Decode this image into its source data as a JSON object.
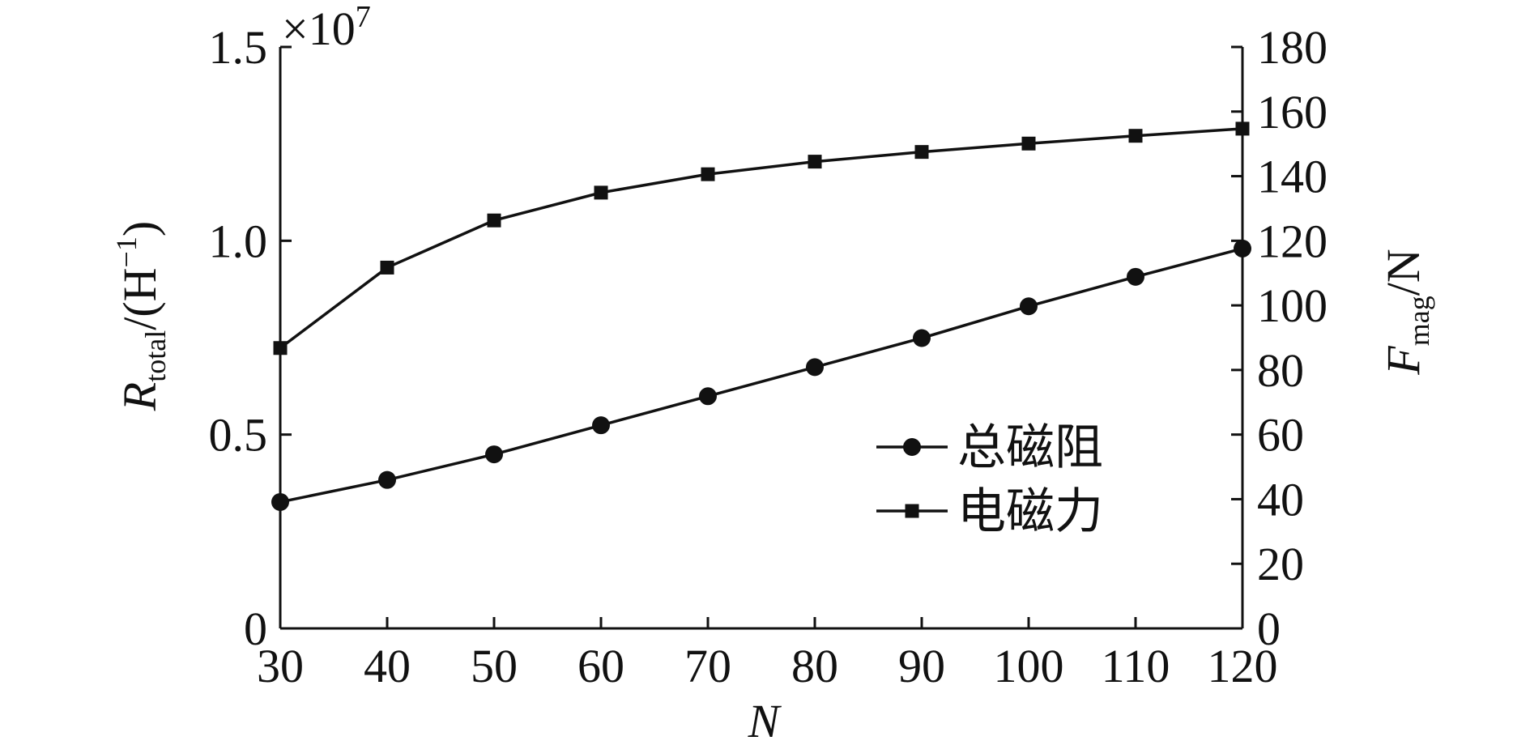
{
  "chart_data": {
    "type": "line",
    "x": [
      30,
      40,
      50,
      60,
      70,
      80,
      90,
      100,
      110,
      120
    ],
    "xlabel": "N",
    "xlim": [
      30,
      120
    ],
    "x_ticks": [
      "30",
      "40",
      "50",
      "60",
      "70",
      "80",
      "90",
      "100",
      "110",
      "120"
    ],
    "y_left": {
      "label_main": "R",
      "label_sub": "total",
      "label_unit": "/(H",
      "label_sup": "−1",
      "label_close": ")",
      "multiplier_prefix": "×10",
      "multiplier_exp": "7",
      "ylim": [
        0,
        1.5
      ],
      "ticks": [
        0,
        0.5,
        1.0,
        1.5
      ],
      "tick_labels": [
        "0",
        "0.5",
        "1.0",
        "1.5"
      ]
    },
    "y_right": {
      "label_main": "F",
      "label_sub": "mag",
      "label_unit": "/N",
      "ylim": [
        0,
        180
      ],
      "ticks": [
        0,
        20,
        40,
        60,
        80,
        100,
        120,
        140,
        160,
        180
      ],
      "tick_labels": [
        "0",
        "20",
        "40",
        "60",
        "80",
        "100",
        "120",
        "140",
        "160",
        "180"
      ]
    },
    "series": [
      {
        "name": "总磁阻",
        "axis": "left",
        "marker": "circle",
        "values": [
          0.326,
          0.383,
          0.449,
          0.524,
          0.599,
          0.674,
          0.749,
          0.831,
          0.907,
          0.98
        ]
      },
      {
        "name": "电磁力",
        "axis": "right",
        "marker": "square",
        "values": [
          86.8,
          111.7,
          126.3,
          134.9,
          140.6,
          144.5,
          147.5,
          150.1,
          152.5,
          154.7
        ]
      }
    ],
    "legend_position": "lower-right",
    "grid": false,
    "colors": {
      "line": "#111111",
      "background": "#ffffff"
    }
  }
}
